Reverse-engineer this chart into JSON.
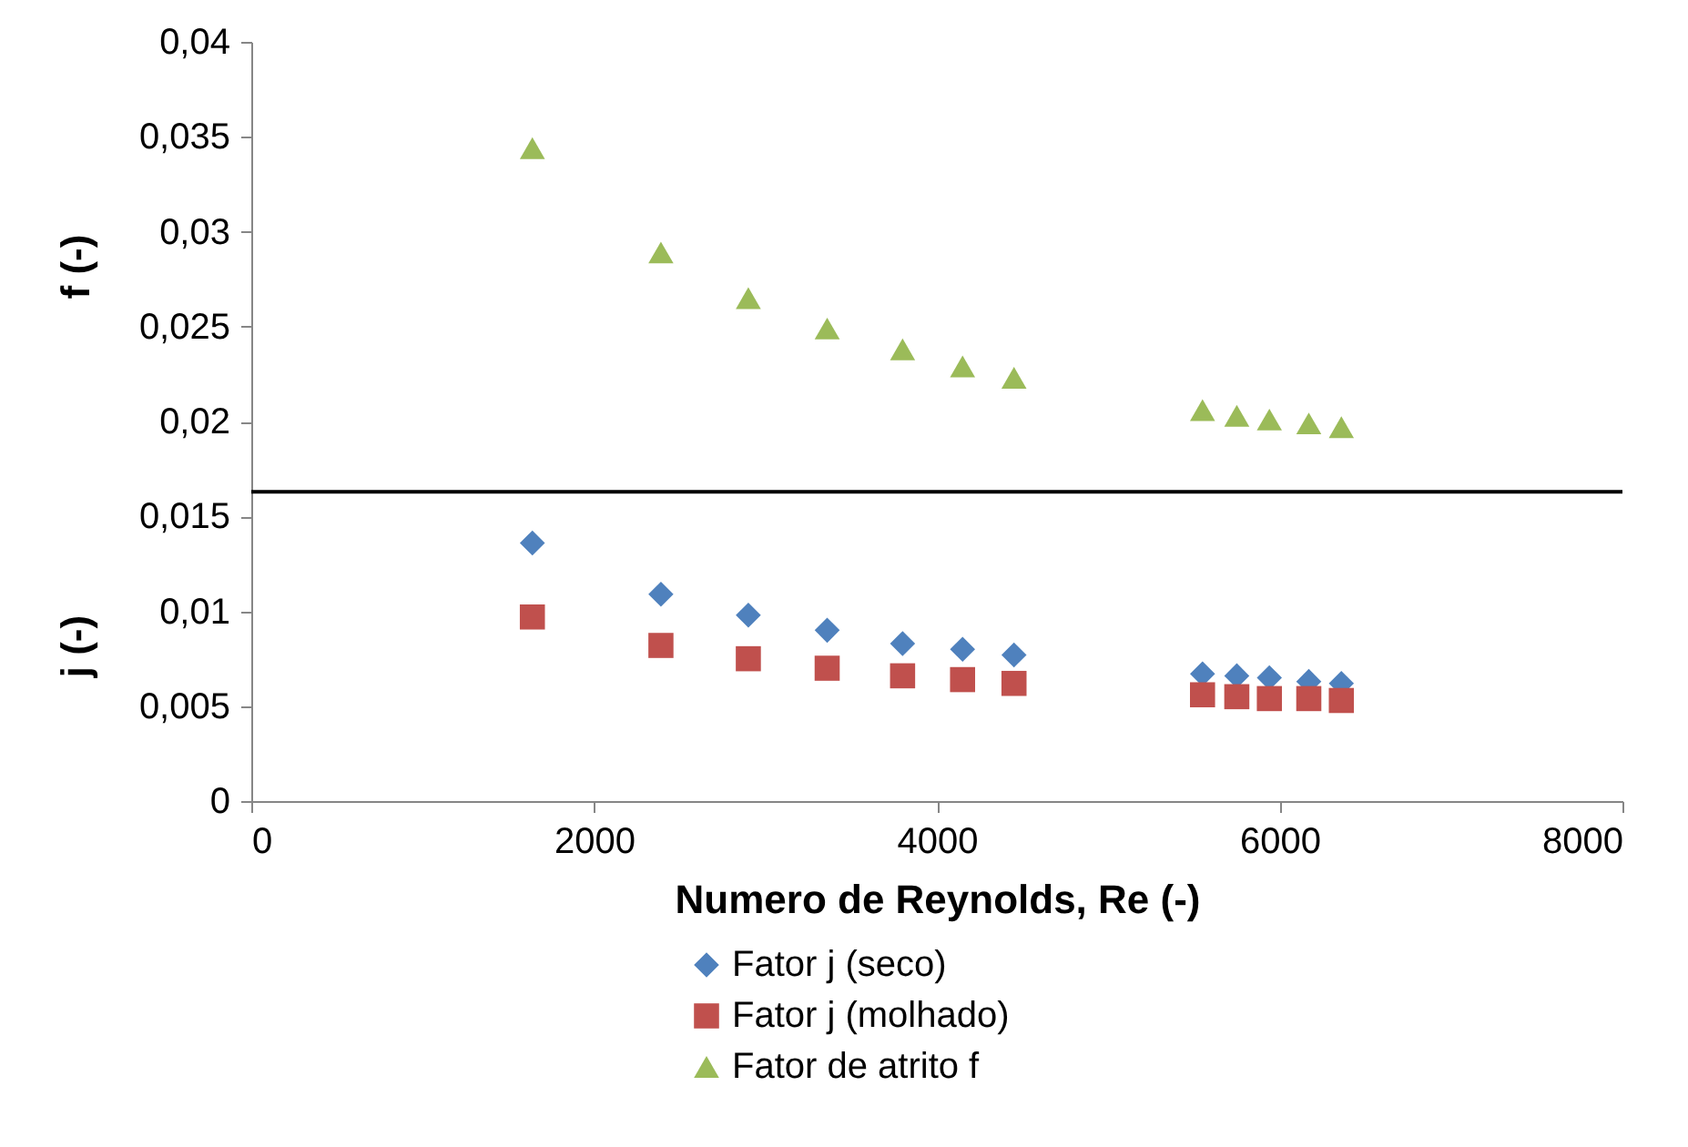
{
  "chart_data": {
    "type": "scatter",
    "xlabel": "Numero de Reynolds, Re (-)",
    "ylabel": "f (-)",
    "annotations": [
      "j (-)"
    ],
    "x": [
      1640,
      2390,
      2900,
      3360,
      3800,
      4150,
      4450,
      5550,
      5750,
      5940,
      6170,
      6360
    ],
    "series": [
      {
        "name": "Fator j (seco)",
        "color": "#4f81bd",
        "marker": "diamond",
        "values": [
          0.0136,
          0.0109,
          0.0098,
          0.009,
          0.0083,
          0.008,
          0.0077,
          0.0067,
          0.0066,
          0.0065,
          0.0063,
          0.0062
        ]
      },
      {
        "name": "Fator j (molhado)",
        "color": "#c0504d",
        "marker": "square",
        "values": [
          0.0097,
          0.0082,
          0.0075,
          0.007,
          0.0066,
          0.0064,
          0.0062,
          0.0056,
          0.0055,
          0.0054,
          0.0054,
          0.0053
        ]
      },
      {
        "name": "Fator de atrito f",
        "color": "#9bbb59",
        "marker": "triangle",
        "values": [
          0.0344,
          0.0289,
          0.0265,
          0.0249,
          0.0238,
          0.0229,
          0.0223,
          0.0206,
          0.0203,
          0.0201,
          0.0199,
          0.0197
        ]
      }
    ],
    "xlim": [
      0,
      8000
    ],
    "xticks": [
      0,
      2000,
      4000,
      6000,
      8000
    ],
    "ylim": [
      0,
      0.04
    ],
    "yticks": [
      0,
      {
        "value": 0.005,
        "label": "0,005"
      },
      {
        "value": 0.01,
        "label": "0,01"
      },
      {
        "value": 0.015,
        "label": "0,015"
      },
      {
        "value": 0.02,
        "label": "0,02"
      },
      {
        "value": 0.025,
        "label": "0,025"
      },
      {
        "value": 0.03,
        "label": "0,03"
      },
      {
        "value": 0.035,
        "label": "0,035"
      },
      {
        "value": 0.04,
        "label": "0,04"
      }
    ],
    "ref_lines": [
      {
        "axis": "y",
        "value": 0.0163,
        "color": "#000000"
      }
    ],
    "grid": false,
    "legend": "bottom"
  }
}
